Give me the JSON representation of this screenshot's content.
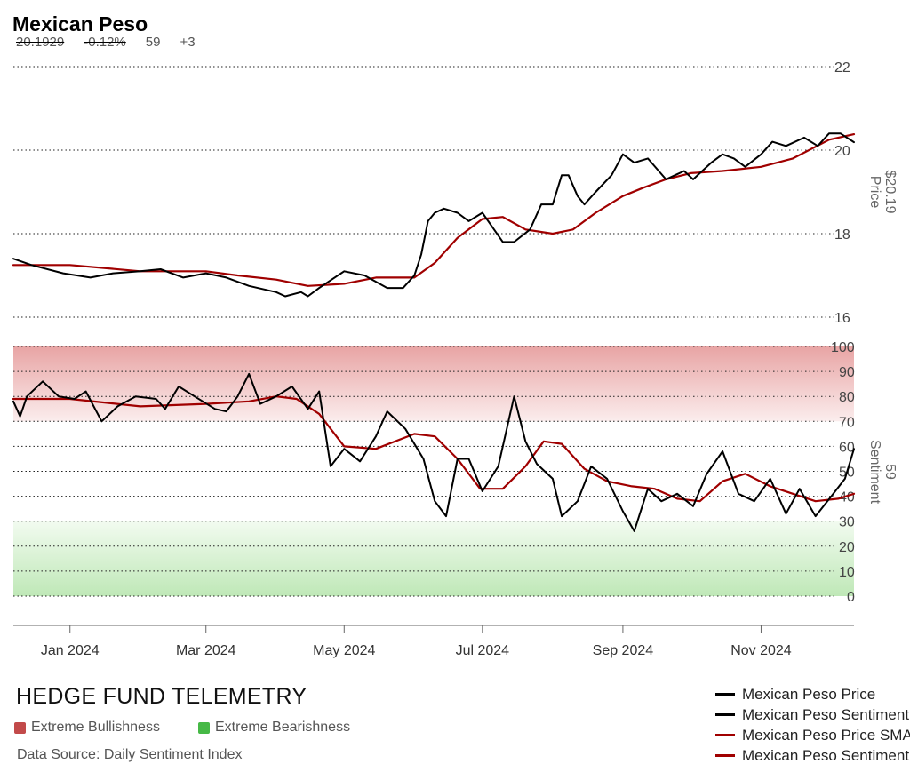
{
  "header": {
    "title": "Mexican Peso",
    "last_price": "20.1929",
    "change_pct": "-0.12%",
    "sentiment": "59",
    "sentiment_change": "+3"
  },
  "footer": {
    "brand": "HEDGE FUND TELEMETRY",
    "extreme_bull_label": "Extreme Bullishness",
    "extreme_bear_label": "Extreme Bearishness",
    "source": "Data Source: Daily Sentiment Index"
  },
  "colors": {
    "price": "#000000",
    "sentiment": "#000000",
    "sma": "#a00000",
    "extreme_bull": "#c24a4a",
    "extreme_bear": "#46b946"
  },
  "chart_data": [
    {
      "type": "line",
      "ylabel": "Price",
      "current_label": "$20.19",
      "ylim": [
        16,
        22
      ],
      "y_ticks": [
        16,
        18,
        20,
        22
      ],
      "grid": "dotted horizontal",
      "x_ticks": [
        "Jan 2024",
        "Mar 2024",
        "May 2024",
        "Jul 2024",
        "Sep 2024",
        "Nov 2024"
      ],
      "x_range": [
        "2023-12-07",
        "2024-12-12"
      ],
      "series": [
        {
          "name": "Mexican Peso Price",
          "x": [
            "2023-12-07",
            "2023-12-15",
            "2023-12-29",
            "2024-01-10",
            "2024-01-20",
            "2024-02-01",
            "2024-02-10",
            "2024-02-20",
            "2024-03-01",
            "2024-03-10",
            "2024-03-20",
            "2024-04-01",
            "2024-04-05",
            "2024-04-12",
            "2024-04-15",
            "2024-04-20",
            "2024-05-01",
            "2024-05-10",
            "2024-05-20",
            "2024-05-27",
            "2024-06-01",
            "2024-06-04",
            "2024-06-07",
            "2024-06-10",
            "2024-06-14",
            "2024-06-20",
            "2024-06-25",
            "2024-07-01",
            "2024-07-10",
            "2024-07-15",
            "2024-07-22",
            "2024-07-27",
            "2024-08-01",
            "2024-08-05",
            "2024-08-08",
            "2024-08-12",
            "2024-08-15",
            "2024-08-20",
            "2024-08-27",
            "2024-09-01",
            "2024-09-06",
            "2024-09-12",
            "2024-09-20",
            "2024-09-28",
            "2024-10-02",
            "2024-10-10",
            "2024-10-15",
            "2024-10-20",
            "2024-10-25",
            "2024-11-01",
            "2024-11-06",
            "2024-11-12",
            "2024-11-20",
            "2024-11-26",
            "2024-12-01",
            "2024-12-06",
            "2024-12-12"
          ],
          "values": [
            17.4,
            17.25,
            17.05,
            16.95,
            17.05,
            17.1,
            17.15,
            16.95,
            17.05,
            16.95,
            16.75,
            16.6,
            16.5,
            16.6,
            16.5,
            16.7,
            17.1,
            17.0,
            16.7,
            16.7,
            17.0,
            17.5,
            18.3,
            18.5,
            18.6,
            18.5,
            18.3,
            18.5,
            17.8,
            17.8,
            18.1,
            18.7,
            18.7,
            19.4,
            19.4,
            18.9,
            18.7,
            19.0,
            19.4,
            19.9,
            19.7,
            19.8,
            19.3,
            19.5,
            19.3,
            19.7,
            19.9,
            19.8,
            19.6,
            19.9,
            20.2,
            20.1,
            20.3,
            20.1,
            20.4,
            20.4,
            20.19
          ]
        },
        {
          "name": "Mexican Peso Price SMA",
          "x": [
            "2023-12-07",
            "2024-01-01",
            "2024-02-01",
            "2024-03-01",
            "2024-03-15",
            "2024-04-01",
            "2024-04-15",
            "2024-05-01",
            "2024-05-15",
            "2024-06-01",
            "2024-06-10",
            "2024-06-20",
            "2024-07-01",
            "2024-07-10",
            "2024-07-20",
            "2024-08-01",
            "2024-08-10",
            "2024-08-20",
            "2024-09-01",
            "2024-09-10",
            "2024-09-20",
            "2024-10-01",
            "2024-10-15",
            "2024-11-01",
            "2024-11-15",
            "2024-12-01",
            "2024-12-12"
          ],
          "values": [
            17.25,
            17.25,
            17.1,
            17.1,
            17.0,
            16.9,
            16.75,
            16.8,
            16.95,
            16.95,
            17.3,
            17.9,
            18.35,
            18.4,
            18.1,
            18.0,
            18.1,
            18.5,
            18.9,
            19.1,
            19.3,
            19.45,
            19.5,
            19.6,
            19.8,
            20.25,
            20.38
          ]
        }
      ]
    },
    {
      "type": "line",
      "ylabel": "Sentiment",
      "current_label": "59",
      "ylim": [
        0,
        100
      ],
      "y_ticks": [
        0,
        10,
        20,
        30,
        40,
        50,
        60,
        70,
        80,
        90,
        100
      ],
      "extreme_bull_band": [
        70,
        100
      ],
      "extreme_bear_band": [
        0,
        30
      ],
      "grid": "dotted horizontal",
      "x_ticks": [
        "Jan 2024",
        "Mar 2024",
        "May 2024",
        "Jul 2024",
        "Sep 2024",
        "Nov 2024"
      ],
      "x_range": [
        "2023-12-07",
        "2024-12-12"
      ],
      "series": [
        {
          "name": "Mexican Peso Sentiment",
          "x": [
            "2023-12-07",
            "2023-12-10",
            "2023-12-13",
            "2023-12-20",
            "2023-12-27",
            "2024-01-03",
            "2024-01-08",
            "2024-01-15",
            "2024-01-22",
            "2024-01-30",
            "2024-02-08",
            "2024-02-12",
            "2024-02-18",
            "2024-02-25",
            "2024-03-05",
            "2024-03-10",
            "2024-03-15",
            "2024-03-20",
            "2024-03-25",
            "2024-04-01",
            "2024-04-08",
            "2024-04-15",
            "2024-04-20",
            "2024-04-25",
            "2024-05-01",
            "2024-05-08",
            "2024-05-15",
            "2024-05-20",
            "2024-05-28",
            "2024-06-05",
            "2024-06-10",
            "2024-06-15",
            "2024-06-20",
            "2024-06-25",
            "2024-07-01",
            "2024-07-08",
            "2024-07-15",
            "2024-07-20",
            "2024-07-25",
            "2024-08-01",
            "2024-08-05",
            "2024-08-12",
            "2024-08-18",
            "2024-08-25",
            "2024-09-01",
            "2024-09-06",
            "2024-09-12",
            "2024-09-18",
            "2024-09-25",
            "2024-10-02",
            "2024-10-08",
            "2024-10-15",
            "2024-10-22",
            "2024-10-29",
            "2024-11-05",
            "2024-11-12",
            "2024-11-18",
            "2024-11-25",
            "2024-12-02",
            "2024-12-08",
            "2024-12-12"
          ],
          "values": [
            78,
            72,
            80,
            86,
            80,
            79,
            82,
            70,
            76,
            80,
            79,
            75,
            84,
            80,
            75,
            74,
            80,
            89,
            77,
            80,
            84,
            75,
            82,
            52,
            59,
            54,
            64,
            74,
            67,
            55,
            38,
            32,
            55,
            55,
            42,
            52,
            80,
            62,
            53,
            47,
            32,
            38,
            52,
            47,
            34,
            26,
            43,
            38,
            41,
            36,
            49,
            58,
            41,
            38,
            47,
            33,
            43,
            32,
            40,
            47,
            59
          ]
        },
        {
          "name": "Mexican Peso Sentiment SMA",
          "x": [
            "2023-12-07",
            "2024-01-01",
            "2024-02-01",
            "2024-03-01",
            "2024-03-20",
            "2024-04-01",
            "2024-04-10",
            "2024-04-20",
            "2024-05-01",
            "2024-05-15",
            "2024-06-01",
            "2024-06-10",
            "2024-06-20",
            "2024-06-30",
            "2024-07-10",
            "2024-07-20",
            "2024-07-28",
            "2024-08-05",
            "2024-08-15",
            "2024-08-25",
            "2024-09-05",
            "2024-09-15",
            "2024-09-25",
            "2024-10-05",
            "2024-10-15",
            "2024-10-25",
            "2024-11-05",
            "2024-11-15",
            "2024-11-25",
            "2024-12-05",
            "2024-12-12"
          ],
          "values": [
            79,
            79,
            76,
            77,
            78,
            80,
            79,
            73,
            60,
            59,
            65,
            64,
            55,
            43,
            43,
            52,
            62,
            61,
            51,
            46,
            44,
            43,
            39,
            38,
            46,
            49,
            44,
            41,
            38,
            39,
            41
          ]
        }
      ]
    }
  ]
}
